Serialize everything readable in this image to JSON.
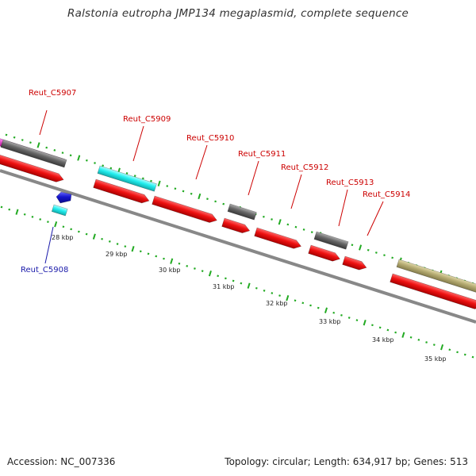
{
  "title": "Ralstonia eutropha JMP134 megaplasmid, complete sequence",
  "footer": {
    "accession": "Accession: NC_007336",
    "summary": "Topology: circular; Length: 634,917 bp; Genes: 513"
  },
  "colors": {
    "forward_cds": "#ee1111",
    "gray_feature": "#666666",
    "cyan_feature": "#22eeee",
    "blue_feature": "#1515cc",
    "olive_feature": "#b5ab72",
    "magenta_feature": "#dd22bb",
    "ticks": "#22aa22",
    "label_red": "#cc0000",
    "label_blue": "#1a1aaa"
  },
  "kbp_labels": [
    "28 kbp",
    "29 kbp",
    "30 kbp",
    "31 kbp",
    "32 kbp",
    "33 kbp",
    "34 kbp",
    "35 kbp"
  ],
  "gene_labels": [
    {
      "text": "Reut_C5907",
      "color": "red"
    },
    {
      "text": "Reut_C5908",
      "color": "blue"
    },
    {
      "text": "Reut_C5909",
      "color": "red"
    },
    {
      "text": "Reut_C5910",
      "color": "red"
    },
    {
      "text": "Reut_C5911",
      "color": "red"
    },
    {
      "text": "Reut_C5912",
      "color": "red"
    },
    {
      "text": "Reut_C5913",
      "color": "red"
    },
    {
      "text": "Reut_C5914",
      "color": "red"
    }
  ]
}
